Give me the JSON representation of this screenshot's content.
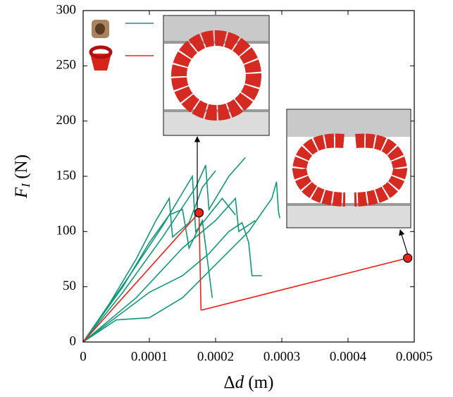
{
  "chart_data": {
    "type": "line",
    "xlabel": {
      "symbol": "Δ",
      "variable": "d",
      "unit": "(m)"
    },
    "ylabel": {
      "variable": "F",
      "subscript": "I",
      "unit": "(N)"
    },
    "xlim": [
      0,
      0.0005
    ],
    "xticks": [
      0,
      0.0001,
      0.0002,
      0.0003,
      0.0004,
      0.0005
    ],
    "ylim": [
      0,
      300
    ],
    "yticks": [
      0,
      50,
      100,
      150,
      200,
      250,
      300
    ],
    "series": [
      {
        "color": "#13967a",
        "mode": "lines",
        "x": [
          0,
          6e-05,
          0.00012,
          0.00017,
          0.000185,
          0.00019,
          0.00022,
          0.000245
        ],
        "values": [
          0,
          45,
          95,
          140,
          160,
          120,
          150,
          167
        ]
      },
      {
        "color": "#13967a",
        "mode": "lines",
        "x": [
          0,
          8e-05,
          0.00015,
          0.0002,
          0.00023,
          0.000235,
          0.00026
        ],
        "values": [
          0,
          40,
          85,
          110,
          130,
          100,
          110
        ]
      },
      {
        "color": "#13967a",
        "mode": "lines",
        "x": [
          0,
          5e-05,
          0.0001,
          0.00015,
          0.0002,
          0.00025,
          0.000285,
          0.000292,
          0.000295,
          0.000297
        ],
        "values": [
          0,
          20,
          22,
          40,
          70,
          100,
          130,
          145,
          118,
          112
        ]
      },
      {
        "color": "#13967a",
        "mode": "lines",
        "x": [
          0,
          6e-05,
          0.0001,
          0.00013,
          0.00015,
          0.00016,
          0.00018,
          0.000195
        ],
        "values": [
          0,
          50,
          90,
          115,
          120,
          85,
          110,
          40
        ]
      },
      {
        "color": "#13967a",
        "mode": "lines",
        "x": [
          0,
          7e-05,
          0.00012,
          0.00015,
          0.000165,
          0.00017,
          0.00021,
          0.00023
        ],
        "values": [
          0,
          60,
          105,
          135,
          150,
          100,
          130,
          115
        ]
      },
      {
        "color": "#13967a",
        "mode": "lines",
        "x": [
          0,
          0.0001,
          0.00015,
          0.00019,
          0.00022,
          0.00024,
          0.00025,
          0.000255,
          0.00027
        ],
        "values": [
          0,
          45,
          60,
          80,
          100,
          108,
          90,
          60,
          60
        ]
      },
      {
        "color": "#13967a",
        "mode": "lines",
        "x": [
          0,
          4e-05,
          8e-05,
          0.00011,
          0.00013,
          0.000135,
          0.00016,
          0.00018,
          0.0002
        ],
        "values": [
          0,
          35,
          75,
          110,
          130,
          95,
          108,
          140,
          155
        ]
      },
      {
        "color": "#e8231b",
        "mode": "lines",
        "x": [
          0,
          0.000175,
          0.000178,
          0.00018,
          0.00049
        ],
        "values": [
          0,
          117,
          29,
          29,
          76
        ]
      },
      {
        "color": "#e8231b",
        "mode": "markers",
        "x": [
          0.000175,
          0.00049
        ],
        "values": [
          117,
          76
        ]
      }
    ]
  }
}
